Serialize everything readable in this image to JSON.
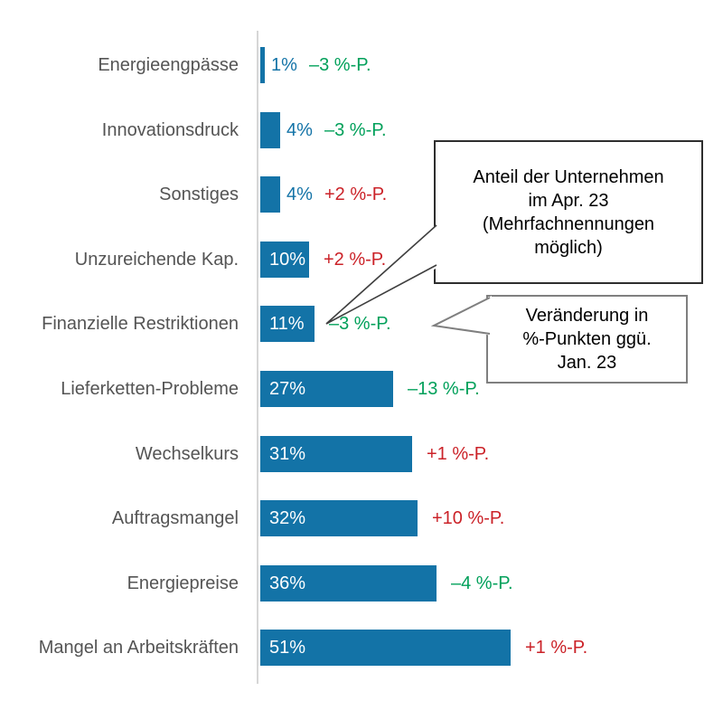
{
  "chart_data": {
    "type": "bar",
    "orientation": "horizontal",
    "title": "",
    "xlabel": "",
    "ylabel": "",
    "xlim": [
      0,
      55
    ],
    "grid": false,
    "legend": false,
    "categories": [
      "Energieengpässe",
      "Innovationsdruck",
      "Sonstiges",
      "Unzureichende Kap.",
      "Finanzielle Restriktionen",
      "Lieferketten-Probleme",
      "Wechselkurs",
      "Auftragsmangel",
      "Energiepreise",
      "Mangel an Arbeitskräften"
    ],
    "values": [
      1,
      4,
      4,
      10,
      11,
      27,
      31,
      32,
      36,
      51
    ],
    "value_labels": [
      "1%",
      "4%",
      "4%",
      "10%",
      "11%",
      "27%",
      "31%",
      "32%",
      "36%",
      "51%"
    ],
    "changes": [
      -3,
      -3,
      2,
      2,
      -3,
      -13,
      1,
      10,
      -4,
      1
    ],
    "change_labels": [
      "–3 %-P.",
      "–3 %-P.",
      "+2 %-P.",
      "+2 %-P.",
      "–3 %-P.",
      "–13 %-P.",
      "+1 %-P.",
      "+10 %-P.",
      "–4 %-P.",
      "+1 %-P."
    ],
    "value_note": "Anteil der Unternehmen im Apr. 23 (Mehrfachnennungen möglich)",
    "change_note": "Veränderung in %-Punkten ggü. Jan. 23",
    "bar_color": "#1373a7",
    "decrease_color": "#00a05a",
    "increase_color": "#cb2228",
    "label_color": "#545454",
    "axis_color": "#d6d6d6"
  },
  "callouts": {
    "share": {
      "text": "Anteil der Unternehmen\nim Apr. 23\n(Mehrfachnennungen\nmöglich)"
    },
    "change": {
      "text": "Veränderung in\n%-Punkten ggü.\nJan. 23"
    }
  }
}
